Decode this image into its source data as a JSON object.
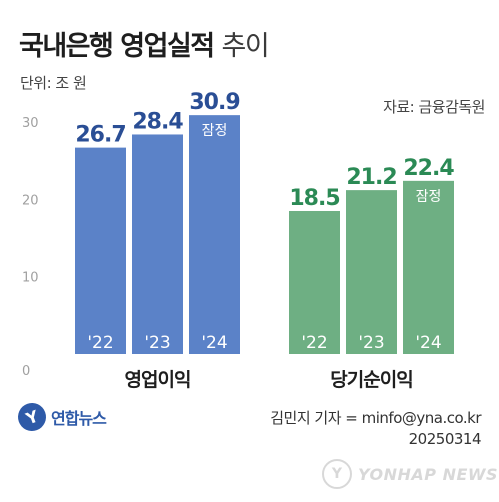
{
  "header": {
    "title_main": "국내은행 영업실적",
    "title_sub": "추이",
    "unit": "단위: 조 원",
    "source": "자료: 금융감독원"
  },
  "chart_data": {
    "type": "bar",
    "title": "국내은행 영업실적 추이",
    "unit": "조 원",
    "ylim": [
      0,
      35
    ],
    "yticks": [
      0,
      10,
      20,
      30
    ],
    "groups": [
      {
        "name": "영업이익",
        "color": "#5b82c8",
        "value_color": "#2a4e95",
        "categories": [
          "'22",
          "'23",
          "'24"
        ],
        "values": [
          26.7,
          28.4,
          30.9
        ],
        "value_labels": [
          "26.7",
          "28.4",
          "30.9"
        ],
        "preliminary": [
          false,
          false,
          true
        ]
      },
      {
        "name": "당기순이익",
        "color": "#6eaf83",
        "value_color": "#2b8a55",
        "categories": [
          "'22",
          "'23",
          "'24"
        ],
        "values": [
          18.5,
          21.2,
          22.4
        ],
        "value_labels": [
          "18.5",
          "21.2",
          "22.4"
        ],
        "preliminary": [
          false,
          false,
          true
        ]
      }
    ],
    "preliminary_label": "잠정",
    "grid": false
  },
  "footer": {
    "logo_text": "연합뉴스",
    "logo_icon": "yonhap-logo-icon",
    "credit_line1": "김민지 기자 = minfo@yna.co.kr",
    "credit_line2": "20250314",
    "watermark_text": "YONHAP NEWS",
    "watermark_icon": "yonhap-watermark-icon"
  }
}
